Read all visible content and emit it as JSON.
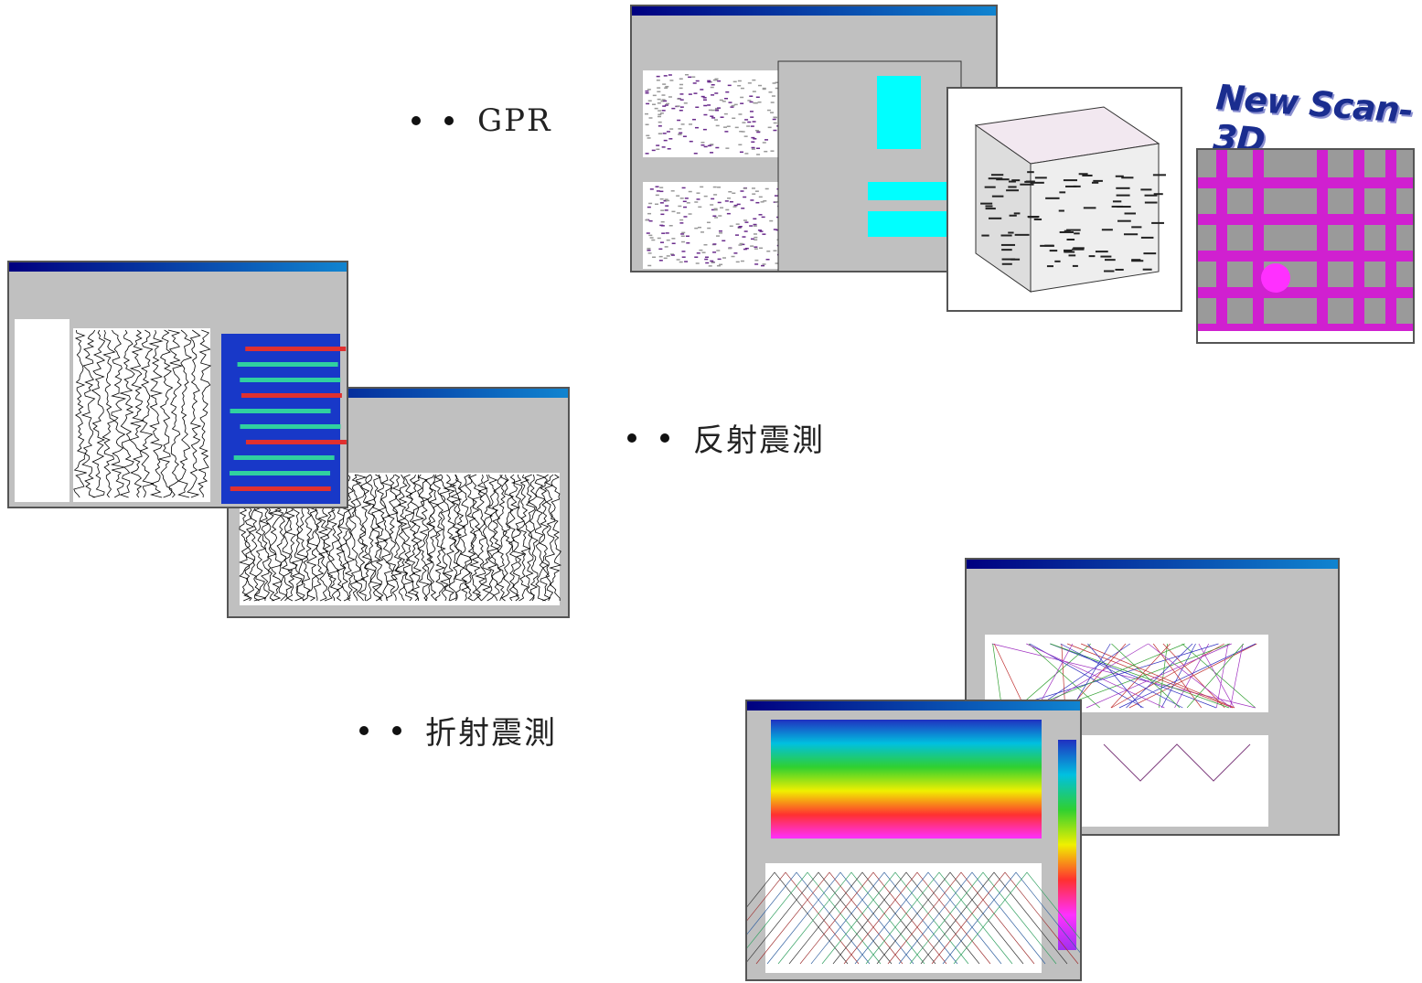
{
  "bullets": [
    {
      "label": "GPR"
    },
    {
      "label": "反射震測"
    },
    {
      "label": "折射震測"
    }
  ],
  "logo": {
    "text": "New Scan-3D"
  }
}
